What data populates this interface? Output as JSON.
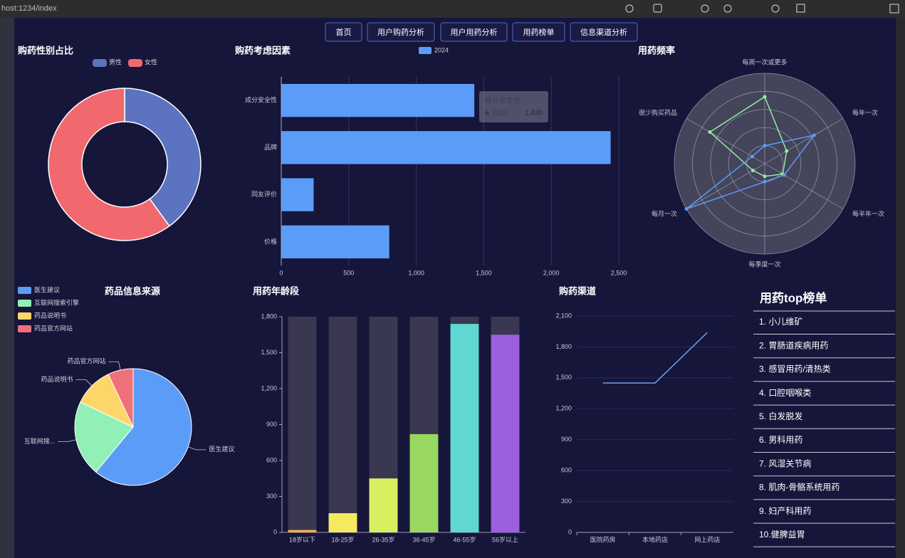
{
  "browser": {
    "url": "host:1234/index"
  },
  "nav": [
    "首页",
    "用户购药分析",
    "用户用药分析",
    "用药榜单",
    "信息渠道分析"
  ],
  "chart_data": [
    {
      "type": "donut",
      "title": "购药性别占比",
      "categories": [
        "男性",
        "女性"
      ],
      "values": [
        40,
        60
      ],
      "colors": [
        "#5b73c0",
        "#f2686f"
      ]
    },
    {
      "type": "bar",
      "orientation": "horizontal",
      "title": "购药考虑因素",
      "categories": [
        "成分安全性",
        "品牌",
        "同友评价",
        "价格"
      ],
      "series": [
        {
          "name": "2024",
          "color": "#5b9cf8",
          "values": [
            1430,
            2440,
            240,
            800
          ]
        }
      ],
      "xlim": [
        0,
        2500
      ],
      "xticks": [
        0,
        500,
        {
          "value": 1000,
          "label": "1,000"
        },
        {
          "value": 1500,
          "label": "1,500"
        },
        {
          "value": 2000,
          "label": "2,000"
        },
        {
          "value": 2500,
          "label": "2,500"
        }
      ],
      "grid": true,
      "tooltip": {
        "title": "成分安全性",
        "series": "2024",
        "value": "1,430"
      }
    },
    {
      "type": "radar",
      "title": "用药频率",
      "indicators": [
        "每周一次或更多",
        "每年一次",
        "每半年一次",
        "每季度一次",
        "每月一次",
        "很少购买药品"
      ],
      "rlim": [
        0,
        100
      ],
      "series": [
        {
          "color": "#8ff0a4",
          "values": [
            74,
            28,
            23,
            14,
            15,
            70
          ]
        },
        {
          "color": "#5b9cf8",
          "values": [
            20,
            63,
            25,
            20,
            100,
            16
          ]
        }
      ]
    },
    {
      "type": "pie",
      "title": "药品信息来源",
      "categories": [
        "医生建议",
        "互联网搜索引擎",
        "药品说明书",
        "药品官方网站"
      ],
      "labels": [
        "医生建议",
        "互联网搜...",
        "药品说明书",
        "药品官方网站"
      ],
      "values": [
        61,
        21,
        11,
        7
      ],
      "colors": [
        "#5b9cf8",
        "#91f0b6",
        "#fdd66a",
        "#f0707a"
      ]
    },
    {
      "type": "bar",
      "orientation": "vertical",
      "title": "用药年龄段",
      "categories": [
        "18岁以下",
        "18-25岁",
        "26-35岁",
        "36-45岁",
        "46-55岁",
        "56岁以上"
      ],
      "series": [
        {
          "colors": [
            "#f5b04a",
            "#f5e960",
            "#d8f060",
            "#98d860",
            "#5ed8d0",
            "#9b5fe0"
          ],
          "values": [
            20,
            160,
            450,
            820,
            1740,
            1650
          ]
        }
      ],
      "show_background": true,
      "background_color": "#3a3850",
      "ylim": [
        0,
        1800
      ],
      "yticks": [
        0,
        300,
        600,
        900,
        {
          "value": 1200,
          "label": "1,200"
        },
        {
          "value": 1500,
          "label": "1,500"
        },
        {
          "value": 1800,
          "label": "1,800"
        }
      ],
      "grid": false
    },
    {
      "type": "line",
      "title": "购药渠道",
      "categories": [
        "医院药房",
        "本地药店",
        "网上药店"
      ],
      "values": [
        1450,
        1450,
        1940
      ],
      "color": "#6ea0f0",
      "ylim": [
        0,
        2100
      ],
      "yticks": [
        0,
        300,
        600,
        900,
        {
          "value": 1200,
          "label": "1,200"
        },
        {
          "value": 1500,
          "label": "1,500"
        },
        {
          "value": 1800,
          "label": "1,800"
        },
        {
          "value": 2100,
          "label": "2,100"
        }
      ],
      "grid": true
    }
  ],
  "top_list": {
    "title": "用药top榜单",
    "items": [
      "1. 小儿维矿",
      "2. 胃肠道疾病用药",
      "3. 感冒用药/清热类",
      "4. 口腔咽喉类",
      "5. 白发脱发",
      "6. 男科用药",
      "7. 风湿关节病",
      "8. 肌肉-骨骼系统用药",
      "9. 妇产科用药",
      "10.健脾益胃"
    ]
  }
}
